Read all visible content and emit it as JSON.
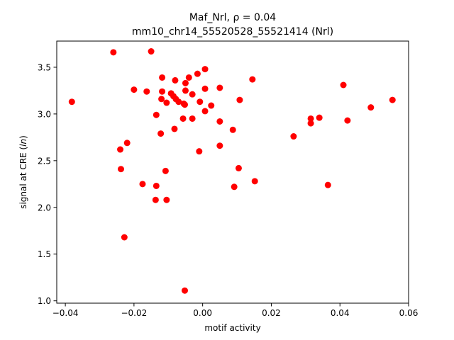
{
  "chart_data": {
    "type": "scatter",
    "title_line1": "Maf_Nrl, ρ = 0.04",
    "title_line2": "mm10_chr14_55520528_55521414 (Nrl)",
    "xlabel": "motif activity",
    "ylabel_main": "signal at CRE (",
    "ylabel_italic": "ln",
    "ylabel_end": ")",
    "xlim": [
      -0.0425,
      0.06
    ],
    "ylim": [
      0.975,
      3.78
    ],
    "xticks": [
      -0.04,
      -0.02,
      0.0,
      0.02,
      0.04,
      0.06
    ],
    "xtick_labels": [
      "−0.04",
      "−0.02",
      "0.00",
      "0.02",
      "0.04",
      "0.06"
    ],
    "yticks": [
      1.0,
      1.5,
      2.0,
      2.5,
      3.0,
      3.5
    ],
    "ytick_labels": [
      "1.0",
      "1.5",
      "2.0",
      "2.5",
      "3.0",
      "3.5"
    ],
    "marker_color": "#ff0000",
    "grid": false,
    "points": [
      {
        "x": -0.0381,
        "y": 3.13
      },
      {
        "x": -0.026,
        "y": 3.66
      },
      {
        "x": -0.015,
        "y": 3.67
      },
      {
        "x": -0.02,
        "y": 3.26
      },
      {
        "x": -0.0163,
        "y": 3.24
      },
      {
        "x": -0.0118,
        "y": 3.39
      },
      {
        "x": -0.0118,
        "y": 3.24
      },
      {
        "x": -0.012,
        "y": 3.16
      },
      {
        "x": -0.0135,
        "y": 2.99
      },
      {
        "x": -0.0122,
        "y": 2.79
      },
      {
        "x": -0.0105,
        "y": 3.12
      },
      {
        "x": -0.0092,
        "y": 3.22
      },
      {
        "x": -0.0085,
        "y": 3.19
      },
      {
        "x": -0.008,
        "y": 3.36
      },
      {
        "x": -0.0078,
        "y": 3.16
      },
      {
        "x": -0.007,
        "y": 3.13
      },
      {
        "x": -0.0055,
        "y": 3.11
      },
      {
        "x": -0.0052,
        "y": 3.1
      },
      {
        "x": -0.005,
        "y": 3.33
      },
      {
        "x": -0.005,
        "y": 3.25
      },
      {
        "x": -0.004,
        "y": 3.39
      },
      {
        "x": -0.003,
        "y": 3.21
      },
      {
        "x": -0.0015,
        "y": 3.43
      },
      {
        "x": 0.0007,
        "y": 3.48
      },
      {
        "x": 0.0007,
        "y": 3.27
      },
      {
        "x": -0.0008,
        "y": 3.13
      },
      {
        "x": 0.0025,
        "y": 3.09
      },
      {
        "x": 0.0007,
        "y": 3.03
      },
      {
        "x": -0.0057,
        "y": 2.95
      },
      {
        "x": -0.003,
        "y": 2.95
      },
      {
        "x": -0.0082,
        "y": 2.84
      },
      {
        "x": 0.005,
        "y": 3.28
      },
      {
        "x": 0.005,
        "y": 2.92
      },
      {
        "x": 0.0088,
        "y": 2.83
      },
      {
        "x": 0.0108,
        "y": 3.15
      },
      {
        "x": 0.0145,
        "y": 3.37
      },
      {
        "x": -0.001,
        "y": 2.6
      },
      {
        "x": 0.005,
        "y": 2.66
      },
      {
        "x": -0.024,
        "y": 2.62
      },
      {
        "x": -0.022,
        "y": 2.69
      },
      {
        "x": -0.0238,
        "y": 2.41
      },
      {
        "x": -0.0108,
        "y": 2.39
      },
      {
        "x": 0.0105,
        "y": 2.42
      },
      {
        "x": -0.0175,
        "y": 2.25
      },
      {
        "x": -0.0135,
        "y": 2.23
      },
      {
        "x": 0.0092,
        "y": 2.22
      },
      {
        "x": 0.0152,
        "y": 2.28
      },
      {
        "x": -0.0137,
        "y": 2.08
      },
      {
        "x": -0.0105,
        "y": 2.08
      },
      {
        "x": -0.0228,
        "y": 1.68
      },
      {
        "x": -0.0052,
        "y": 1.11
      },
      {
        "x": 0.0265,
        "y": 2.76
      },
      {
        "x": 0.0315,
        "y": 2.95
      },
      {
        "x": 0.0315,
        "y": 2.9
      },
      {
        "x": 0.034,
        "y": 2.96
      },
      {
        "x": 0.0365,
        "y": 2.24
      },
      {
        "x": 0.041,
        "y": 3.31
      },
      {
        "x": 0.0422,
        "y": 2.93
      },
      {
        "x": 0.049,
        "y": 3.07
      },
      {
        "x": 0.0553,
        "y": 3.15
      }
    ]
  }
}
